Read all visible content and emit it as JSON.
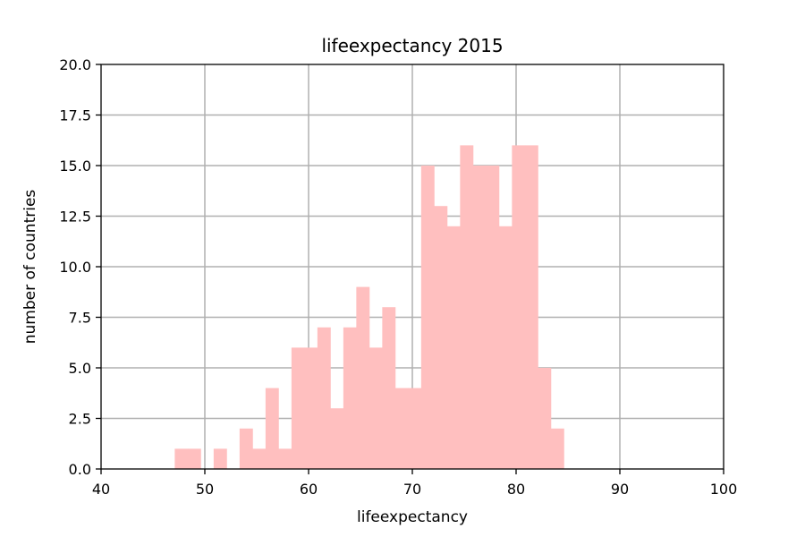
{
  "chart_data": {
    "type": "bar",
    "title": "lifeexpectancy 2015",
    "xlabel": "lifeexpectancy",
    "ylabel": "number of countries",
    "xlim": [
      40,
      100
    ],
    "ylim": [
      0,
      20
    ],
    "x_ticks": [
      "40",
      "50",
      "60",
      "70",
      "80",
      "90",
      "100"
    ],
    "y_ticks": [
      "0.0",
      "2.5",
      "5.0",
      "7.5",
      "10.0",
      "12.5",
      "15.0",
      "17.5",
      "20.0"
    ],
    "grid": true,
    "bar_color": "#ffbfbf",
    "bin_width": 1.25,
    "bins": [
      {
        "x0": 47.1,
        "value": 1
      },
      {
        "x0": 48.35,
        "value": 1
      },
      {
        "x0": 49.6,
        "value": 0
      },
      {
        "x0": 50.85,
        "value": 1
      },
      {
        "x0": 52.1,
        "value": 0
      },
      {
        "x0": 53.35,
        "value": 2
      },
      {
        "x0": 54.6,
        "value": 1
      },
      {
        "x0": 55.85,
        "value": 4
      },
      {
        "x0": 57.1,
        "value": 1
      },
      {
        "x0": 58.35,
        "value": 6
      },
      {
        "x0": 59.6,
        "value": 6
      },
      {
        "x0": 60.85,
        "value": 7
      },
      {
        "x0": 62.1,
        "value": 3
      },
      {
        "x0": 63.35,
        "value": 7
      },
      {
        "x0": 64.6,
        "value": 9
      },
      {
        "x0": 65.85,
        "value": 6
      },
      {
        "x0": 67.1,
        "value": 8
      },
      {
        "x0": 68.35,
        "value": 4
      },
      {
        "x0": 69.6,
        "value": 4
      },
      {
        "x0": 70.85,
        "value": 15
      },
      {
        "x0": 72.1,
        "value": 13
      },
      {
        "x0": 73.35,
        "value": 12
      },
      {
        "x0": 74.6,
        "value": 16
      },
      {
        "x0": 75.85,
        "value": 15
      },
      {
        "x0": 77.1,
        "value": 15
      },
      {
        "x0": 78.35,
        "value": 12
      },
      {
        "x0": 79.6,
        "value": 16
      },
      {
        "x0": 80.85,
        "value": 16
      },
      {
        "x0": 82.1,
        "value": 5
      },
      {
        "x0": 83.35,
        "value": 2
      }
    ]
  }
}
